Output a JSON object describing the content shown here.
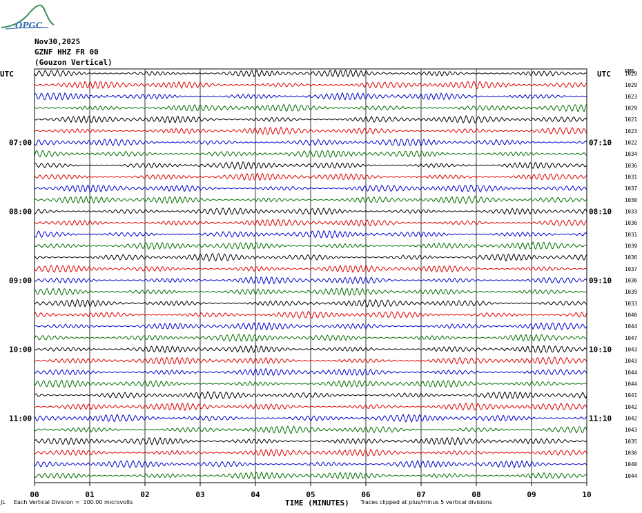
{
  "logo_text": "OPGC",
  "header": {
    "date": "Nov30,2025",
    "station": "GZNF HHZ FR 00",
    "location": "(Gouzon Vertical)"
  },
  "left_axis_title": "UTC",
  "right_axis_title": "UTC",
  "rms_header": "RMS",
  "footer": {
    "scale_text": "Each Vertical Division =  100.00 microvolts",
    "clip_text": "Traces clipped at plus/minus 5 vertical divisions",
    "corner_mark": "JL"
  },
  "colors": {
    "black": "#000000",
    "red": "#e00000",
    "blue": "#0000d0",
    "green": "#007000",
    "grid": "#000000"
  },
  "chart_data": {
    "type": "line",
    "subtype": "helicorder",
    "xlabel": "TIME (MINUTES)",
    "xlim": [
      0,
      10
    ],
    "x_ticks": [
      "00",
      "01",
      "02",
      "03",
      "04",
      "05",
      "06",
      "07",
      "08",
      "09",
      "10"
    ],
    "trace_colors_cycle": [
      "black",
      "red",
      "blue",
      "green"
    ],
    "left_time_labels": [
      {
        "label": "07:00",
        "row": 6
      },
      {
        "label": "08:00",
        "row": 12
      },
      {
        "label": "09:00",
        "row": 18
      },
      {
        "label": "10:00",
        "row": 24
      },
      {
        "label": "11:00",
        "row": 30
      }
    ],
    "right_time_labels": [
      {
        "label": "07:10",
        "row": 6
      },
      {
        "label": "08:10",
        "row": 12
      },
      {
        "label": "09:10",
        "row": 18
      },
      {
        "label": "10:10",
        "row": 24
      },
      {
        "label": "11:10",
        "row": 30
      }
    ],
    "rms_values": [
      "1029",
      "1029",
      "1023",
      "1029",
      "1021",
      "1023",
      "1022",
      "1034",
      "1036",
      "1031",
      "1037",
      "1030",
      "1033",
      "1036",
      "1031",
      "1039",
      "1036",
      "1037",
      "1036",
      "1039",
      "1033",
      "1040",
      "1044",
      "1047",
      "1043",
      "1043",
      "1044",
      "1044",
      "1041",
      "1042",
      "1042",
      "1043",
      "1035",
      "1036",
      "1040",
      "1044"
    ],
    "scale_microvolts_per_division": 100.0,
    "clip_divisions": 5
  }
}
